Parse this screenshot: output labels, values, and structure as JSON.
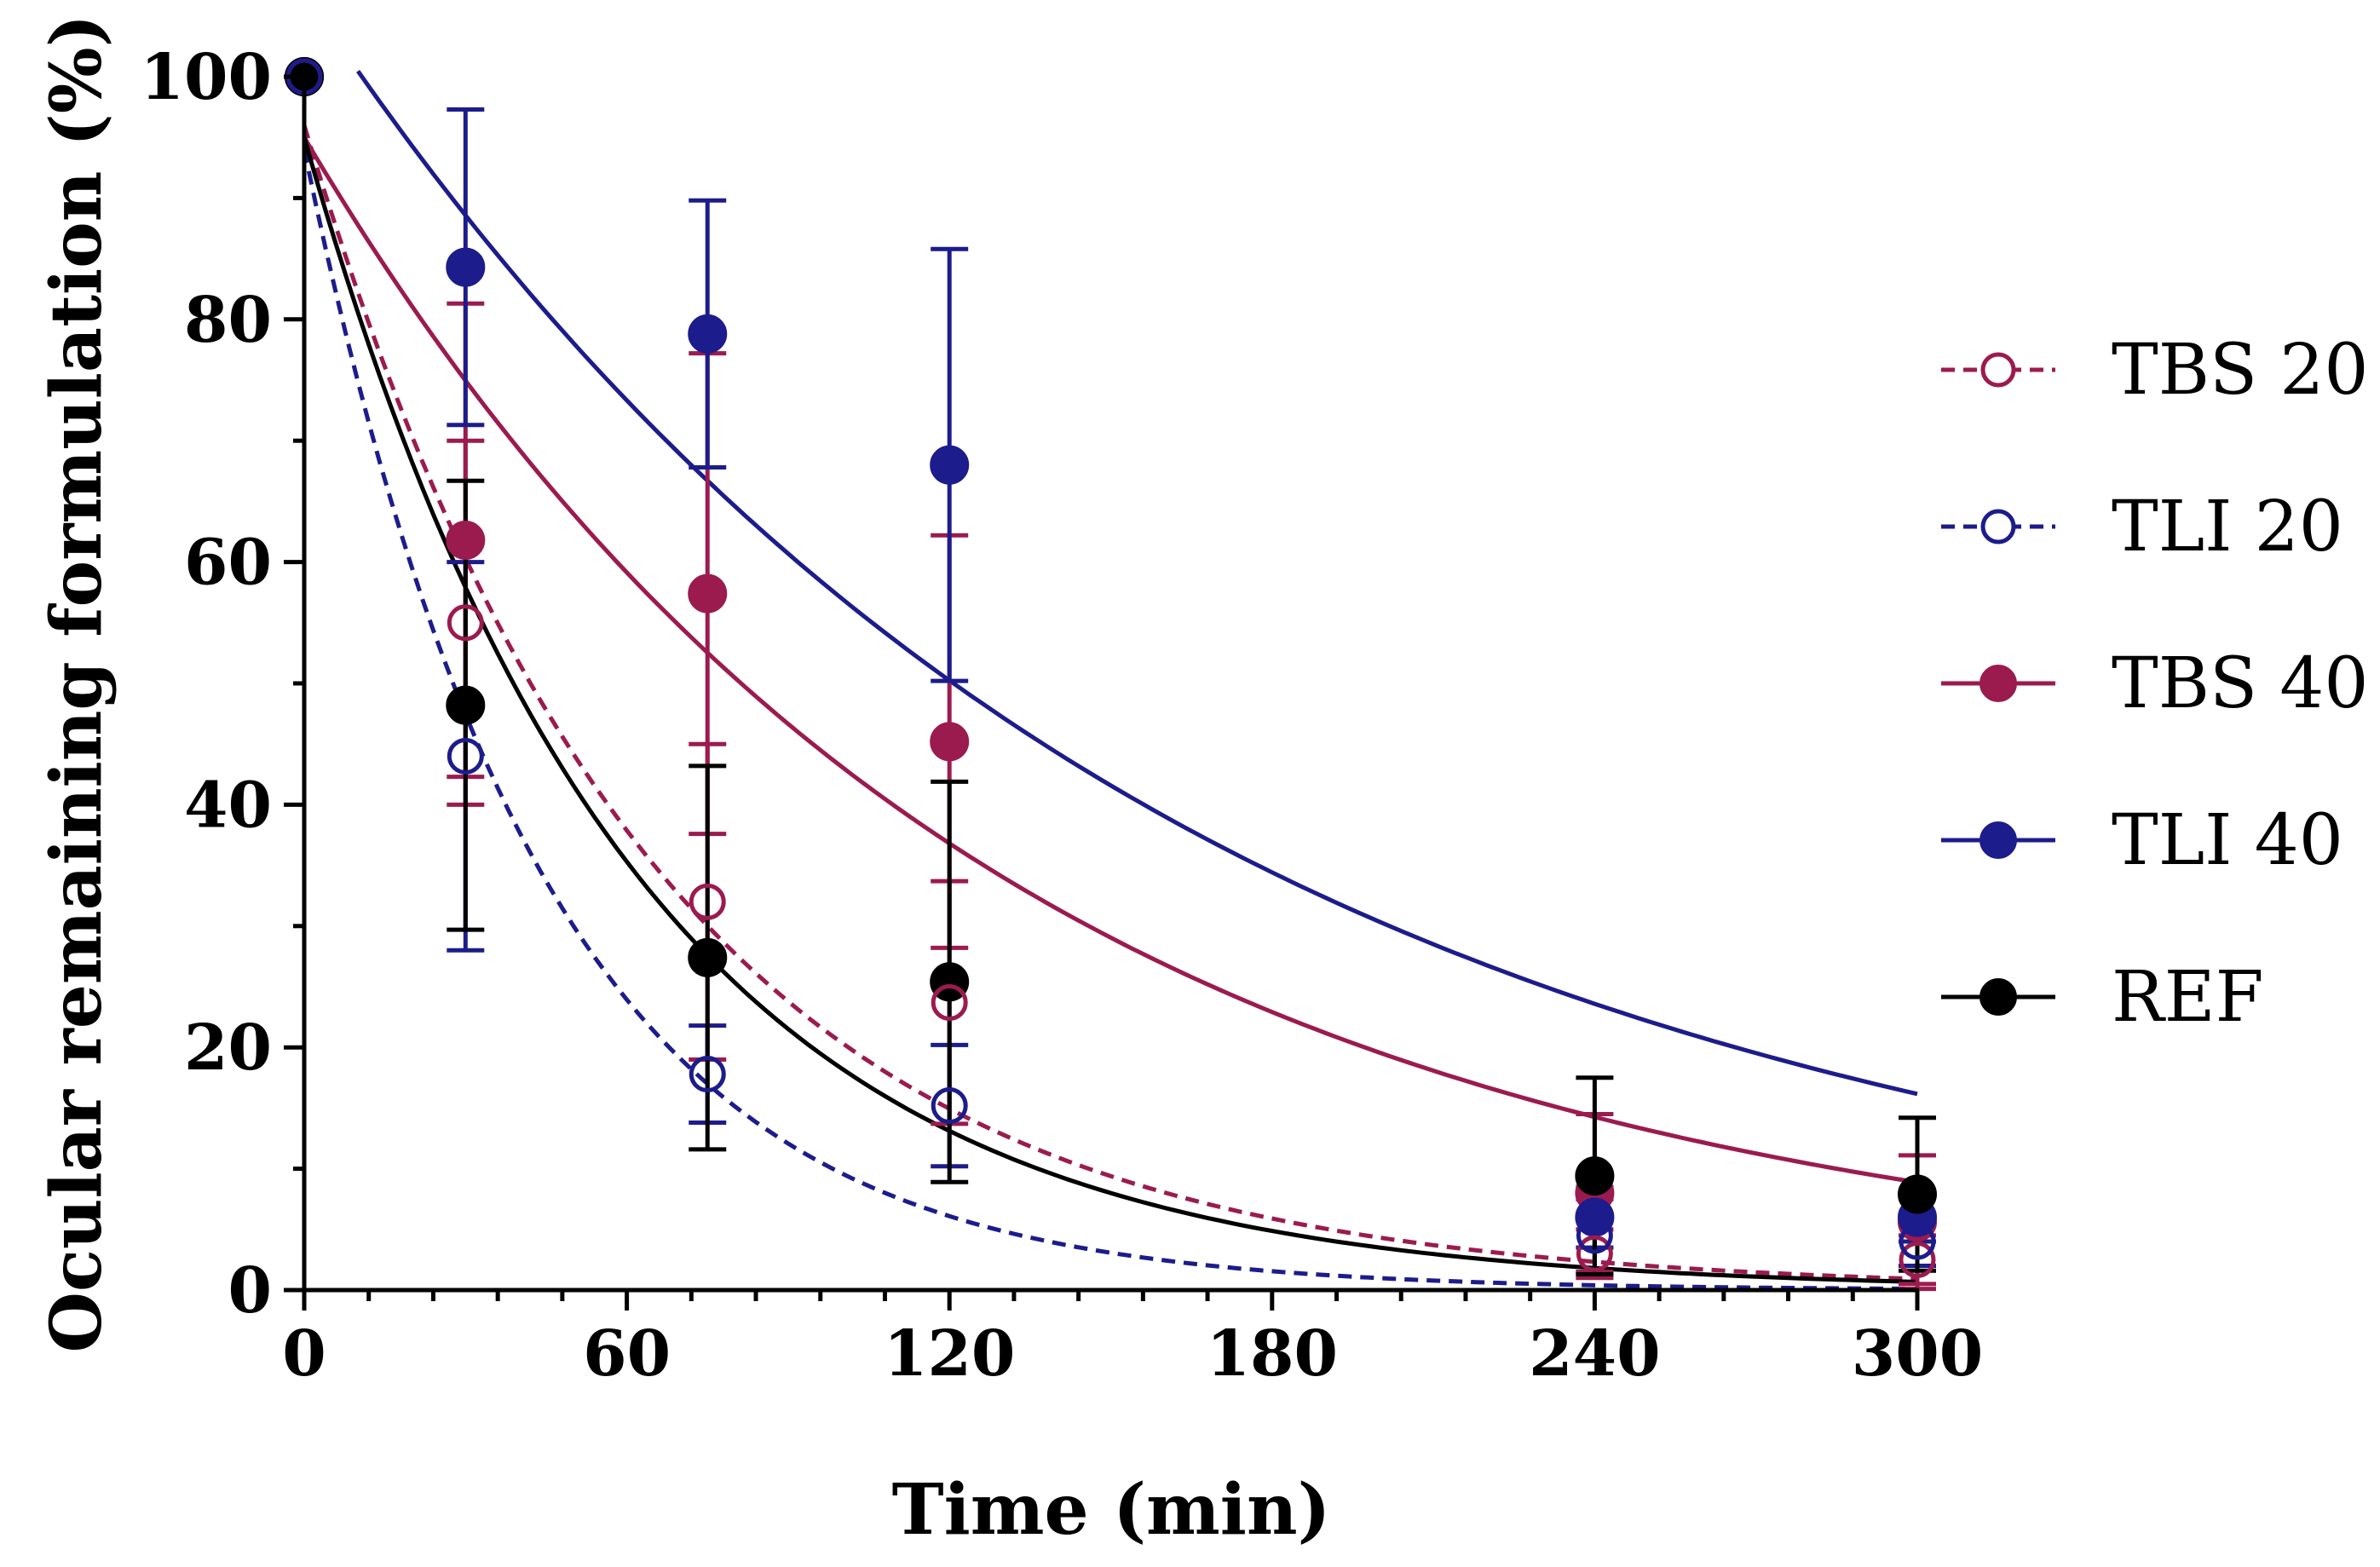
{
  "chart_data": {
    "type": "scatter",
    "title": "",
    "xlabel": "Time (min)",
    "ylabel": "Ocular remaining formulation (%)",
    "xlim": [
      0,
      300
    ],
    "ylim": [
      0,
      100
    ],
    "x_ticks": [
      0,
      60,
      120,
      180,
      240,
      300
    ],
    "y_ticks": [
      0,
      20,
      40,
      60,
      80,
      100
    ],
    "x_minor_step": 12,
    "y_minor_step": 10,
    "legend_position": "right",
    "series": [
      {
        "name": "TBS 20",
        "color": "#9b1b4f",
        "marker": "open-circle",
        "fit_line": "dashed",
        "fit_start": 0,
        "fit_y0": 96,
        "fit_k": 0.0155,
        "x": [
          0,
          30,
          75,
          120,
          240,
          300
        ],
        "y": [
          100,
          55,
          32,
          23.7,
          3,
          2.5
        ],
        "err": [
          0,
          15,
          13,
          10,
          2,
          2
        ]
      },
      {
        "name": "TLI 20",
        "color": "#1c1c8c",
        "marker": "open-circle",
        "fit_line": "dashed",
        "fit_start": 0,
        "fit_y0": 94,
        "fit_k": 0.0228,
        "x": [
          0,
          30,
          75,
          120,
          240,
          300
        ],
        "y": [
          100,
          44,
          17.8,
          15.2,
          4.5,
          4
        ],
        "err": [
          0,
          16,
          4,
          5,
          3,
          2
        ]
      },
      {
        "name": "TBS 40",
        "color": "#9b1b4f",
        "marker": "filled-circle",
        "fit_line": "solid",
        "fit_start": 0,
        "fit_y0": 95,
        "fit_k": 0.0079,
        "x": [
          0,
          30,
          75,
          120,
          240,
          300
        ],
        "y": [
          100,
          61.8,
          57.4,
          45.2,
          8,
          5.6
        ],
        "err": [
          0,
          19.5,
          19.8,
          17,
          6.5,
          5.5
        ]
      },
      {
        "name": "TLI 40",
        "color": "#1c1c8c",
        "marker": "filled-circle",
        "fit_line": "solid",
        "fit_start": 10,
        "fit_y0": 107,
        "fit_k": 0.0063,
        "x": [
          0,
          30,
          75,
          120,
          240,
          300
        ],
        "y": [
          100,
          84.3,
          78.8,
          68,
          6,
          6
        ],
        "err": [
          0,
          13,
          11,
          17.8,
          2.5,
          2
        ]
      },
      {
        "name": "REF",
        "color": "#000000",
        "marker": "filled-circle",
        "fit_line": "solid",
        "fit_start": 0,
        "fit_y0": 95,
        "fit_k": 0.0165,
        "x": [
          0,
          30,
          75,
          120,
          240,
          300
        ],
        "y": [
          100,
          48.2,
          27.4,
          25.4,
          9.4,
          7.9
        ],
        "err": [
          0,
          18.5,
          15.8,
          16.5,
          8.1,
          6.3
        ]
      }
    ]
  }
}
